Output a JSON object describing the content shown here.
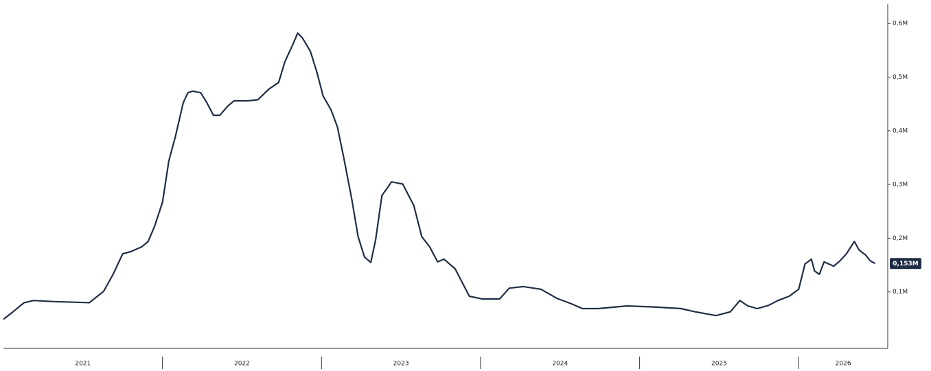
{
  "chart_data": {
    "type": "line",
    "color": "#1f2d45",
    "x": [
      2021.0,
      2021.06,
      2021.13,
      2021.19,
      2021.32,
      2021.54,
      2021.63,
      2021.69,
      2021.75,
      2021.8,
      2021.87,
      2021.91,
      2021.95,
      2022.0,
      2022.04,
      2022.08,
      2022.13,
      2022.16,
      2022.19,
      2022.24,
      2022.28,
      2022.32,
      2022.36,
      2022.41,
      2022.45,
      2022.54,
      2022.6,
      2022.67,
      2022.73,
      2022.77,
      2022.82,
      2022.85,
      2022.88,
      2022.93,
      2022.97,
      2023.01,
      2023.06,
      2023.1,
      2023.14,
      2023.19,
      2023.23,
      2023.27,
      2023.31,
      2023.34,
      2023.38,
      2023.41,
      2023.44,
      2023.51,
      2023.58,
      2023.63,
      2023.68,
      2023.73,
      2023.77,
      2023.84,
      2023.88,
      2023.93,
      2024.01,
      2024.12,
      2024.18,
      2024.27,
      2024.38,
      2024.48,
      2024.57,
      2024.64,
      2024.74,
      2024.85,
      2024.92,
      2025.09,
      2025.26,
      2025.35,
      2025.48,
      2025.57,
      2025.63,
      2025.68,
      2025.74,
      2025.81,
      2025.87,
      2025.94,
      2026.0,
      2026.04,
      2026.08,
      2026.1,
      2026.13,
      2026.16,
      2026.22,
      2026.26,
      2026.3,
      2026.35,
      2026.38,
      2026.42,
      2026.45,
      2026.48
    ],
    "values": [
      0.049,
      0.063,
      0.08,
      0.084,
      0.082,
      0.08,
      0.101,
      0.133,
      0.171,
      0.175,
      0.184,
      0.194,
      0.222,
      0.267,
      0.344,
      0.388,
      0.452,
      0.471,
      0.474,
      0.471,
      0.452,
      0.429,
      0.429,
      0.446,
      0.456,
      0.456,
      0.458,
      0.478,
      0.49,
      0.529,
      0.561,
      0.582,
      0.573,
      0.548,
      0.51,
      0.465,
      0.439,
      0.407,
      0.35,
      0.273,
      0.203,
      0.165,
      0.155,
      0.197,
      0.28,
      0.292,
      0.305,
      0.301,
      0.261,
      0.203,
      0.184,
      0.156,
      0.161,
      0.143,
      0.12,
      0.092,
      0.087,
      0.087,
      0.107,
      0.11,
      0.105,
      0.088,
      0.078,
      0.069,
      0.069,
      0.072,
      0.074,
      0.072,
      0.069,
      0.063,
      0.056,
      0.063,
      0.084,
      0.074,
      0.069,
      0.075,
      0.084,
      0.092,
      0.105,
      0.152,
      0.161,
      0.139,
      0.133,
      0.156,
      0.148,
      0.158,
      0.171,
      0.194,
      0.178,
      0.169,
      0.158,
      0.153
    ],
    "xlim": [
      2021,
      2026.56
    ],
    "xticks": [
      {
        "value": 2021,
        "label": "2021"
      },
      {
        "value": 2022,
        "label": "2022"
      },
      {
        "value": 2023,
        "label": "2023"
      },
      {
        "value": 2024,
        "label": "2024"
      },
      {
        "value": 2025,
        "label": "2025"
      },
      {
        "value": 2026,
        "label": "2026"
      }
    ],
    "ylim": [
      0,
      0.63
    ],
    "yticks": [
      {
        "value": 0.1,
        "label": "0,1M"
      },
      {
        "value": 0.2,
        "label": "0,2M"
      },
      {
        "value": 0.3,
        "label": "0,3M"
      },
      {
        "value": 0.4,
        "label": "0,4M"
      },
      {
        "value": 0.5,
        "label": "0,5M"
      },
      {
        "value": 0.6,
        "label": "0,6M"
      }
    ],
    "annotations": [
      {
        "x": 2026.48,
        "y": 0.153,
        "label": "0,153M"
      }
    ]
  }
}
